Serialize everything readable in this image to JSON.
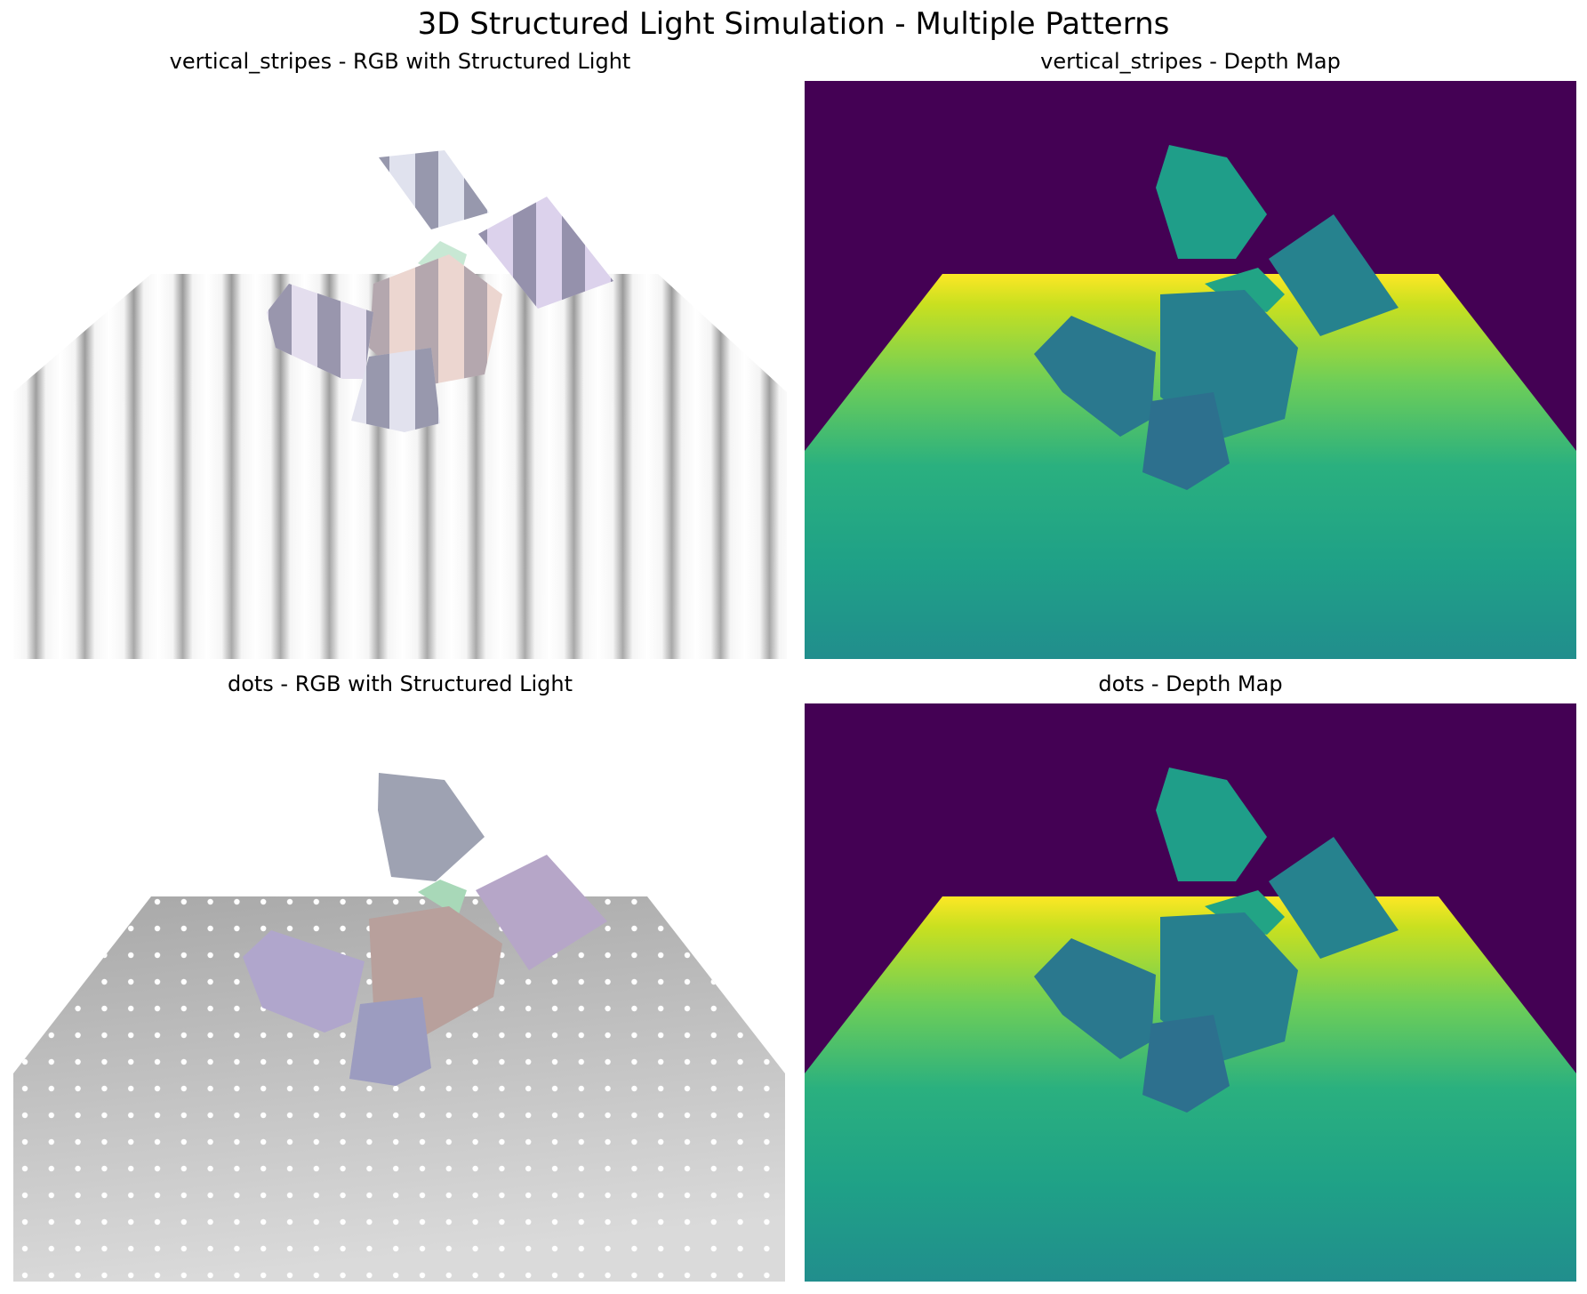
{
  "figure": {
    "title": "3D Structured Light Simulation - Multiple Patterns"
  },
  "panels": [
    {
      "title": "vertical_stripes - RGB with Structured Light",
      "pattern": "vertical_stripes",
      "kind": "rgb"
    },
    {
      "title": "vertical_stripes - Depth Map",
      "pattern": "vertical_stripes",
      "kind": "depth",
      "colormap": "viridis"
    },
    {
      "title": "dots - RGB with Structured Light",
      "pattern": "dots",
      "kind": "rgb"
    },
    {
      "title": "dots - Depth Map",
      "pattern": "dots",
      "kind": "depth",
      "colormap": "viridis"
    }
  ],
  "colors": {
    "depth_background": "#440154",
    "depth_near": "#21908d",
    "depth_mid": "#22a884",
    "depth_far": "#fde725",
    "cube_depth": "#26828e",
    "cube_purple": "#b8a8d0",
    "cube_pink": "#c8a8a0",
    "cube_gray": "#a8acbc",
    "cube_green": "#a8d8b8",
    "cube_blue": "#a0a0c8"
  }
}
